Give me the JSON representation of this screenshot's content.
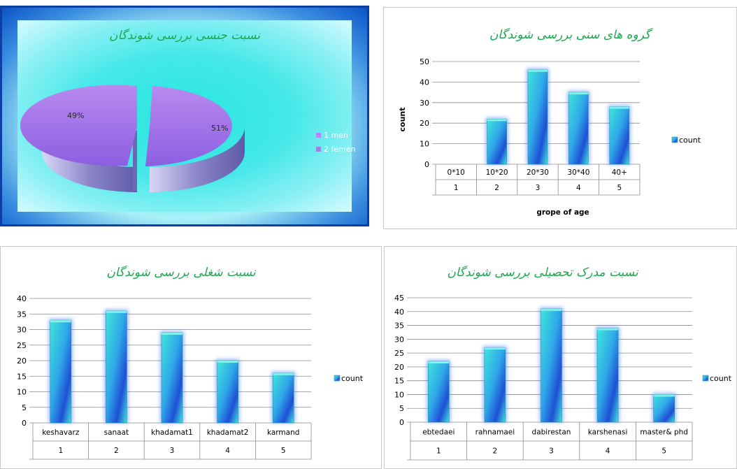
{
  "chart_data": [
    {
      "id": "gender",
      "type": "pie",
      "title": "نسبت جنسی بررسی شوندگان",
      "categories": [
        "1 men",
        "2 femen"
      ],
      "values": [
        49,
        51
      ],
      "value_labels": [
        "49%",
        "51%"
      ],
      "legend": "right",
      "colors": [
        "#9b6fe6",
        "#8f7fd8"
      ]
    },
    {
      "id": "age",
      "type": "bar",
      "title": "گروه های سنی بررسی شوندگان",
      "categories": [
        "0*10",
        "10*20",
        "20*30",
        "30*40",
        "40+"
      ],
      "category_index": [
        "1",
        "2",
        "3",
        "4",
        "5"
      ],
      "series": [
        {
          "name": "count",
          "values": [
            0,
            22,
            46,
            35,
            28
          ]
        }
      ],
      "xlabel": "grope of age",
      "ylabel": "count",
      "ylim": [
        0,
        50
      ],
      "yticks": [
        0,
        10,
        20,
        30,
        40,
        50
      ],
      "grid": true,
      "legend": "right"
    },
    {
      "id": "job",
      "type": "bar",
      "title": "نسبت شغلی بررسی شوندگان",
      "categories": [
        "keshavarz",
        "sanaat",
        "khadamat1",
        "khadamat2",
        "karmand"
      ],
      "category_index": [
        "1",
        "2",
        "3",
        "4",
        "5"
      ],
      "series": [
        {
          "name": "count",
          "values": [
            33,
            36,
            29,
            20,
            16
          ]
        }
      ],
      "ylim": [
        0,
        40
      ],
      "yticks": [
        0,
        5,
        10,
        15,
        20,
        25,
        30,
        35,
        40
      ],
      "grid": true,
      "legend": "right"
    },
    {
      "id": "edu",
      "type": "bar",
      "title": "نسبت مدرک تحصیلی بررسی شوندگان",
      "categories": [
        "ebtedaei",
        "rahnamaei",
        "dabirestan",
        "karshenasi",
        "master& phd"
      ],
      "category_index": [
        "1",
        "2",
        "3",
        "4",
        "5"
      ],
      "series": [
        {
          "name": "count",
          "values": [
            22,
            27,
            41,
            34,
            10
          ]
        }
      ],
      "ylim": [
        0,
        45
      ],
      "yticks": [
        0,
        5,
        10,
        15,
        20,
        25,
        30,
        35,
        40,
        45
      ],
      "grid": true,
      "legend": "right"
    }
  ]
}
